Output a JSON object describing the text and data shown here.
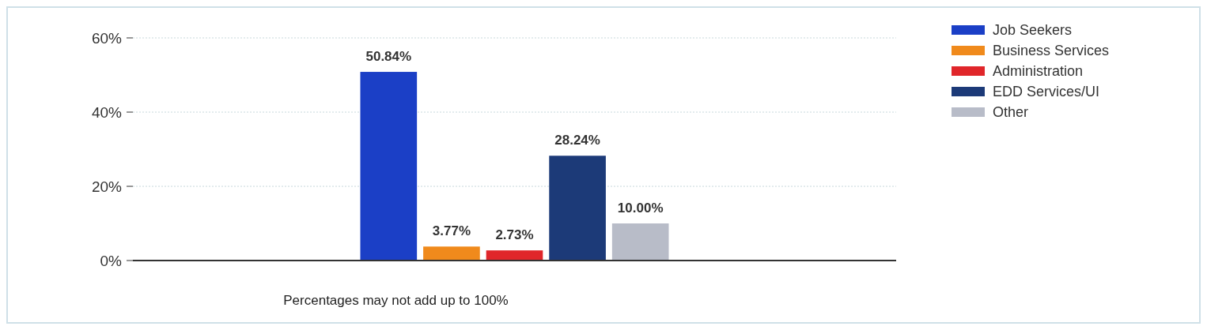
{
  "chart_data": {
    "type": "bar",
    "categories": [
      null
    ],
    "series": [
      {
        "name": "Job Seekers",
        "color": "#1b3fc6",
        "values": [
          50.84
        ],
        "value_labels": [
          "50.84%"
        ]
      },
      {
        "name": "Business Services",
        "color": "#f08a1c",
        "values": [
          3.77
        ],
        "value_labels": [
          "3.77%"
        ]
      },
      {
        "name": "Administration",
        "color": "#e0262a",
        "values": [
          2.73
        ],
        "value_labels": [
          "2.73%"
        ]
      },
      {
        "name": "EDD Services/UI",
        "color": "#1c3a78",
        "values": [
          28.24
        ],
        "value_labels": [
          "28.24%"
        ]
      },
      {
        "name": "Other",
        "color": "#b8bcc8",
        "values": [
          10.0
        ],
        "value_labels": [
          "10.00%"
        ]
      }
    ],
    "ylim": [
      0,
      60
    ],
    "yticks": [
      {
        "value": 0,
        "label": "0%"
      },
      {
        "value": 20,
        "label": "20%"
      },
      {
        "value": 40,
        "label": "40%"
      },
      {
        "value": 60,
        "label": "60%"
      }
    ],
    "grid": "y",
    "legend": "top right",
    "annotations": [
      "Percentages may not add up to 100%"
    ]
  }
}
